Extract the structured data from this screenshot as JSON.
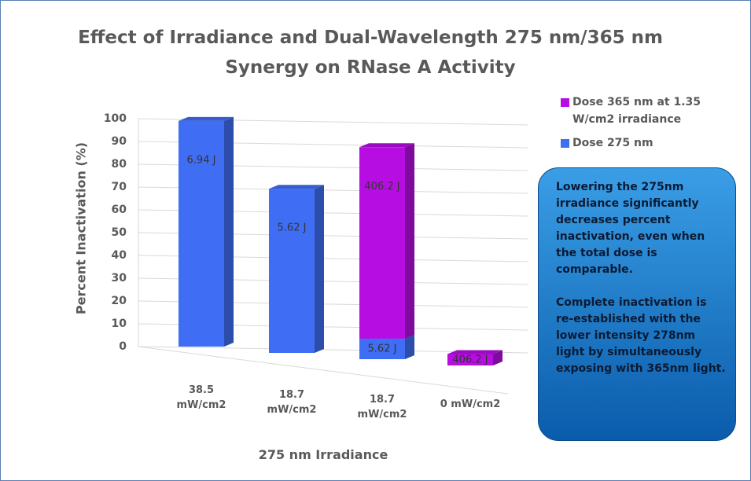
{
  "chart_data": {
    "type": "bar",
    "stacked": true,
    "title": "Effect of Irradiance and Dual-Wavelength 275 nm/365 nm Synergy on RNase A Activity",
    "x_label": "275 nm Irradiance",
    "y_label": "Percent Inactivation (%)",
    "categories": [
      "38.5 mW/cm2",
      "18.7 mW/cm2",
      "18.7 mW/cm2",
      "0 mW/cm2"
    ],
    "series": [
      {
        "name": "Dose 275 nm",
        "color": "#3f6ef5",
        "values": [
          99,
          72,
          9,
          null
        ],
        "value_labels": [
          "6.94 J",
          "5.62 J",
          "5.62 J",
          null
        ]
      },
      {
        "name": "Dose 365 nm at 1.35 W/cm2 irradiance",
        "color": "#b60ee2",
        "values": [
          null,
          null,
          84,
          5
        ],
        "value_labels": [
          null,
          null,
          "406.2 J",
          "406.2 J"
        ]
      }
    ],
    "ylim": [
      0,
      100
    ],
    "yticks": [
      0,
      10,
      20,
      30,
      40,
      50,
      60,
      70,
      80,
      90,
      100
    ],
    "grid": true,
    "legend": "top-right",
    "annotations": [
      "Lowering the 275nm irradiance significantly decreases percent inactivation, even when the total dose is comparable.",
      "Complete inactivation is re-established with the lower intensity 278nm light by simultaneously exposing with 365nm light."
    ]
  }
}
